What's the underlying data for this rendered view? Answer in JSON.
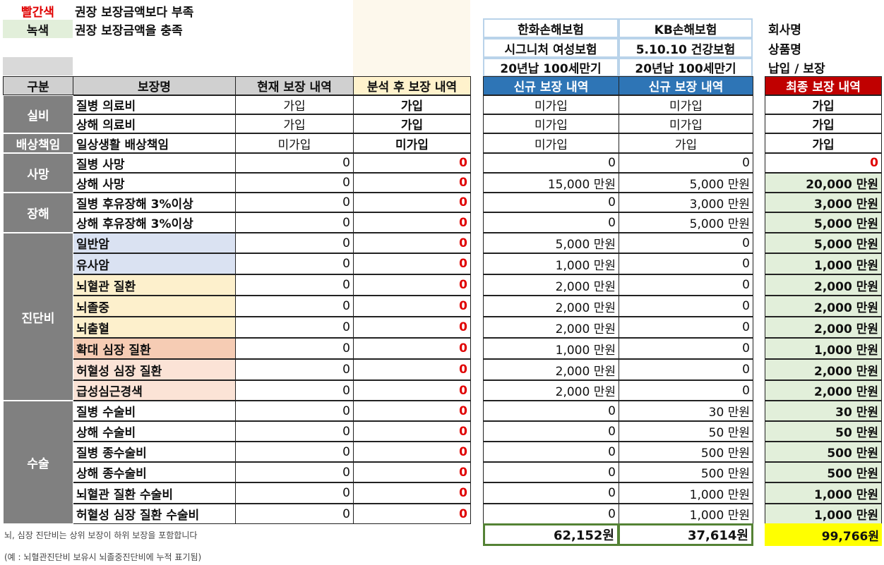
{
  "legend": {
    "red_label": "빨간색",
    "red_desc": "권장 보장금액보다 부족",
    "green_label": "녹색",
    "green_desc": "권장 보장금액을 충족"
  },
  "companies": {
    "a": {
      "name": "한화손해보험",
      "product": "시그니처 여성보험",
      "term": "20년납 100세만기"
    },
    "b": {
      "name": "KB손해보험",
      "product": "5.10.10 건강보험",
      "term": "20년납 100세만기"
    }
  },
  "row_labels": {
    "company": "회사명",
    "product": "상품명",
    "term": "납입 / 보장"
  },
  "headers": {
    "category": "구분",
    "name": "보장명",
    "current": "현재 보장 내역",
    "analysis": "분석 후 보장 내역",
    "new_a": "신규 보장 내역",
    "new_b": "신규 보장 내역",
    "final": "최종 보장 내역"
  },
  "groups": [
    {
      "label": "실비",
      "rows": 2
    },
    {
      "label": "배상책임",
      "rows": 1
    },
    {
      "label": "사망",
      "rows": 2
    },
    {
      "label": "장해",
      "rows": 2
    },
    {
      "label": "진단비",
      "rows": 8
    },
    {
      "label": "수술",
      "rows": 6
    }
  ],
  "rows": [
    {
      "name": "질병 의료비",
      "cur": "가입",
      "ana": "가입",
      "a": "미가입",
      "b": "미가입",
      "fin": "가입",
      "bg": "",
      "fin_status": "text"
    },
    {
      "name": "상해 의료비",
      "cur": "가입",
      "ana": "가입",
      "a": "미가입",
      "b": "미가입",
      "fin": "가입",
      "bg": "",
      "fin_status": "text"
    },
    {
      "name": "일상생활 배상책임",
      "cur": "미가입",
      "ana": "미가입",
      "a": "미가입",
      "b": "가입",
      "fin": "가입",
      "bg": "",
      "fin_status": "text"
    },
    {
      "name": "질병 사망",
      "cur": "0",
      "ana": "0",
      "a": "0",
      "b": "0",
      "fin": "0",
      "bg": "",
      "fin_status": "red"
    },
    {
      "name": "상해 사망",
      "cur": "0",
      "ana": "0",
      "a": "15,000 만원",
      "b": "5,000 만원",
      "fin": "20,000 만원",
      "bg": "",
      "fin_status": "green"
    },
    {
      "name": "질병 후유장해 3%이상",
      "cur": "0",
      "ana": "0",
      "a": "0",
      "b": "3,000 만원",
      "fin": "3,000 만원",
      "bg": "",
      "fin_status": "green"
    },
    {
      "name": "상해 후유장해 3%이상",
      "cur": "0",
      "ana": "0",
      "a": "0",
      "b": "5,000 만원",
      "fin": "5,000 만원",
      "bg": "",
      "fin_status": "green"
    },
    {
      "name": "일반암",
      "cur": "0",
      "ana": "0",
      "a": "5,000 만원",
      "b": "0",
      "fin": "5,000 만원",
      "bg": "#dae2f2",
      "fin_status": "green"
    },
    {
      "name": "유사암",
      "cur": "0",
      "ana": "0",
      "a": "1,000 만원",
      "b": "0",
      "fin": "1,000 만원",
      "bg": "#dae2f2",
      "fin_status": "green"
    },
    {
      "name": "뇌혈관 질환",
      "cur": "0",
      "ana": "0",
      "a": "2,000 만원",
      "b": "0",
      "fin": "2,000 만원",
      "bg": "#fdf0cc",
      "fin_status": "green"
    },
    {
      "name": "뇌졸중",
      "cur": "0",
      "ana": "0",
      "a": "2,000 만원",
      "b": "0",
      "fin": "2,000 만원",
      "bg": "#fdf0cc",
      "fin_status": "green"
    },
    {
      "name": "뇌출혈",
      "cur": "0",
      "ana": "0",
      "a": "2,000 만원",
      "b": "0",
      "fin": "2,000 만원",
      "bg": "#fdf0cc",
      "fin_status": "green"
    },
    {
      "name": "확대 심장 질환",
      "cur": "0",
      "ana": "0",
      "a": "1,000 만원",
      "b": "0",
      "fin": "1,000 만원",
      "bg": "#f6ccb4",
      "fin_status": "green"
    },
    {
      "name": "허혈성 심장 질환",
      "cur": "0",
      "ana": "0",
      "a": "2,000 만원",
      "b": "0",
      "fin": "2,000 만원",
      "bg": "#fbe3d6",
      "fin_status": "green"
    },
    {
      "name": "급성심근경색",
      "cur": "0",
      "ana": "0",
      "a": "2,000 만원",
      "b": "0",
      "fin": "2,000 만원",
      "bg": "#fbe3d6",
      "fin_status": "green"
    },
    {
      "name": "질병 수술비",
      "cur": "0",
      "ana": "0",
      "a": "0",
      "b": "30 만원",
      "fin": "30 만원",
      "bg": "",
      "fin_status": "green"
    },
    {
      "name": "상해 수술비",
      "cur": "0",
      "ana": "0",
      "a": "0",
      "b": "50 만원",
      "fin": "50 만원",
      "bg": "",
      "fin_status": "green"
    },
    {
      "name": "질병 종수술비",
      "cur": "0",
      "ana": "0",
      "a": "0",
      "b": "500 만원",
      "fin": "500 만원",
      "bg": "",
      "fin_status": "green"
    },
    {
      "name": "상해 종수술비",
      "cur": "0",
      "ana": "0",
      "a": "0",
      "b": "500 만원",
      "fin": "500 만원",
      "bg": "",
      "fin_status": "green"
    },
    {
      "name": "뇌혈관 질환 수술비",
      "cur": "0",
      "ana": "0",
      "a": "0",
      "b": "1,000 만원",
      "fin": "1,000 만원",
      "bg": "",
      "fin_status": "green"
    },
    {
      "name": "허혈성 심장 질환 수술비",
      "cur": "0",
      "ana": "0",
      "a": "0",
      "b": "1,000 만원",
      "fin": "1,000 만원",
      "bg": "",
      "fin_status": "green"
    }
  ],
  "totals": {
    "a": "62,152원",
    "b": "37,614원",
    "final": "99,766원"
  },
  "notes": {
    "line1": "뇌, 심장 진단비는 상위 보장이 하위 보장을 포함합니다",
    "line2": "(예 : 뇌혈관진단비 보유시 뇌졸중진단비에 누적 표기됨)"
  },
  "colors": {
    "red_text": "#e00000",
    "green_fill": "#e2efda",
    "gray_header": "#d0d0d0",
    "dark_group": "#808080",
    "yellow_header": "#fff2cc",
    "blue_header": "#2e75b6",
    "red_header": "#c00000",
    "yellow_total": "#ffff00",
    "green_border": "#548235"
  }
}
